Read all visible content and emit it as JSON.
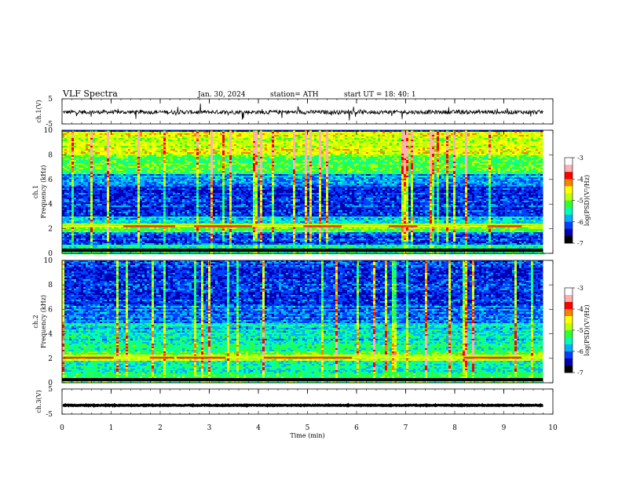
{
  "header": {
    "title": "VLF  Spectra",
    "date": "Jan. 30, 2024",
    "station": "station= ATH",
    "start_ut": "start  UT  =   18: 40: 1"
  },
  "chart_data": [
    {
      "name": "ch.1",
      "type": "line",
      "ylabel": "ch.1(V)",
      "ylim": [
        -5,
        5
      ],
      "yticks": [
        "5",
        "-5"
      ],
      "baseline": -0.3,
      "color": "#000000"
    },
    {
      "name": "ch.1 spectrogram",
      "type": "heatmap",
      "ylabel_top": "ch.1",
      "ylabel": "Frequency  (kHz)",
      "ylim": [
        0,
        10
      ],
      "yticks": [
        "0",
        "2",
        "4",
        "6",
        "8",
        "10"
      ],
      "colorbar": {
        "label": "log(PSD)(V²/Hz)",
        "range": [
          -7,
          -3
        ],
        "ticks": [
          "-3",
          "-4",
          "-5",
          "-6",
          "-7"
        ],
        "colors": [
          "#000000",
          "#0000b0",
          "#0040ff",
          "#00b0ff",
          "#00ffb0",
          "#30ff30",
          "#c0ff00",
          "#ffff00",
          "#ff8000",
          "#ff0000",
          "#ffb0b0",
          "#ffffff"
        ]
      },
      "bands": [
        {
          "f": [
            8.0,
            10.0
          ],
          "level": 0.6
        },
        {
          "f": [
            6.5,
            8.0
          ],
          "level": 0.45
        },
        {
          "f": [
            5.5,
            6.5
          ],
          "level": 0.25
        },
        {
          "f": [
            3.0,
            5.5
          ],
          "level": 0.12
        },
        {
          "f": [
            2.3,
            3.0
          ],
          "level": 0.3
        },
        {
          "f": [
            1.8,
            2.3
          ],
          "level": 0.45
        },
        {
          "f": [
            0.8,
            1.8
          ],
          "level": 0.15
        },
        {
          "f": [
            0.0,
            0.8
          ],
          "level": 0.35
        }
      ],
      "tones_khz": [
        2.2,
        2.35
      ]
    },
    {
      "name": "ch.2 spectrogram",
      "type": "heatmap",
      "ylabel_top": "ch.2",
      "ylabel": "Frequency  (kHz)",
      "ylim": [
        0,
        10
      ],
      "yticks": [
        "0",
        "2",
        "4",
        "6",
        "8",
        "10"
      ],
      "colorbar": {
        "label": "log(PSD)(V²/Hz)",
        "range": [
          -7,
          -3
        ],
        "ticks": [
          "-3",
          "-4",
          "-5",
          "-6",
          "-7"
        ]
      },
      "bands": [
        {
          "f": [
            6.5,
            10.0
          ],
          "level": 0.12
        },
        {
          "f": [
            5.0,
            6.5
          ],
          "level": 0.2
        },
        {
          "f": [
            3.2,
            5.0
          ],
          "level": 0.32
        },
        {
          "f": [
            2.4,
            3.2
          ],
          "level": 0.42
        },
        {
          "f": [
            1.8,
            2.4
          ],
          "level": 0.55
        },
        {
          "f": [
            0.8,
            1.8
          ],
          "level": 0.35
        },
        {
          "f": [
            0.0,
            0.8
          ],
          "level": 0.45
        }
      ],
      "tones_khz": [
        2.05,
        2.15
      ]
    },
    {
      "name": "ch.3",
      "type": "line",
      "ylabel": "ch.3(V)",
      "ylim": [
        -5,
        5
      ],
      "yticks": [
        "5",
        "-5"
      ],
      "baseline": -1.5,
      "color": "#000000"
    }
  ],
  "xaxis": {
    "label": "Time  (min)",
    "xlim": [
      0,
      10
    ],
    "ticks": [
      "0",
      "1",
      "2",
      "3",
      "4",
      "5",
      "6",
      "7",
      "8",
      "9",
      "10"
    ],
    "data_end": 9.8
  }
}
